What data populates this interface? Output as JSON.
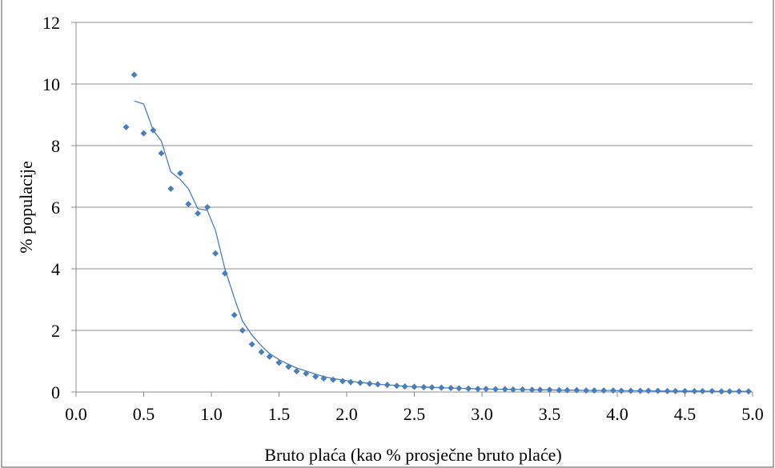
{
  "chart_data": {
    "type": "scatter",
    "title": "",
    "xlabel": "Bruto plaća (kao % prosječne bruto plaće)",
    "ylabel": "% populacije",
    "xlim": [
      0.0,
      5.0
    ],
    "ylim": [
      0,
      12
    ],
    "x_ticks": [
      "0.0",
      "0.5",
      "1.0",
      "1.5",
      "2.0",
      "2.5",
      "3.0",
      "3.5",
      "4.0",
      "4.5",
      "5.0"
    ],
    "y_ticks": [
      "0",
      "2",
      "4",
      "6",
      "8",
      "10",
      "12"
    ],
    "grid": true,
    "legend": "none",
    "colors": {
      "series": "#4a7ebb",
      "grid": "#8c8c8c"
    },
    "series": [
      {
        "style": "markers",
        "marker": "diamond",
        "x": [
          0.37,
          0.43,
          0.5,
          0.57,
          0.63,
          0.7,
          0.77,
          0.83,
          0.9,
          0.97,
          1.03,
          1.1,
          1.17,
          1.23,
          1.3,
          1.37,
          1.43,
          1.5,
          1.57,
          1.63,
          1.7,
          1.77,
          1.83,
          1.9,
          1.97,
          2.03,
          2.1,
          2.17,
          2.23,
          2.3,
          2.37,
          2.43,
          2.5,
          2.57,
          2.63,
          2.7,
          2.77,
          2.83,
          2.9,
          2.97,
          3.03,
          3.1,
          3.17,
          3.23,
          3.3,
          3.37,
          3.43,
          3.5,
          3.57,
          3.63,
          3.7,
          3.77,
          3.83,
          3.9,
          3.97,
          4.03,
          4.1,
          4.17,
          4.23,
          4.3,
          4.37,
          4.43,
          4.5,
          4.57,
          4.63,
          4.7,
          4.77,
          4.83,
          4.9,
          4.97
        ],
        "y": [
          8.6,
          10.3,
          8.4,
          8.5,
          7.75,
          6.6,
          7.1,
          6.1,
          5.8,
          6.0,
          4.5,
          3.85,
          2.5,
          2.0,
          1.55,
          1.3,
          1.15,
          0.95,
          0.82,
          0.68,
          0.6,
          0.5,
          0.44,
          0.4,
          0.35,
          0.32,
          0.3,
          0.27,
          0.25,
          0.23,
          0.2,
          0.18,
          0.17,
          0.16,
          0.15,
          0.14,
          0.13,
          0.12,
          0.11,
          0.1,
          0.1,
          0.09,
          0.09,
          0.08,
          0.08,
          0.07,
          0.07,
          0.07,
          0.06,
          0.06,
          0.06,
          0.05,
          0.05,
          0.05,
          0.05,
          0.04,
          0.04,
          0.04,
          0.04,
          0.04,
          0.03,
          0.03,
          0.03,
          0.03,
          0.03,
          0.03,
          0.02,
          0.02,
          0.02,
          0.02
        ]
      },
      {
        "style": "line",
        "x": [
          0.43,
          0.5,
          0.57,
          0.63,
          0.7,
          0.77,
          0.83,
          0.9,
          0.97,
          1.03,
          1.1,
          1.17,
          1.23,
          1.3,
          1.37,
          1.43,
          1.5,
          1.57,
          1.63,
          1.7,
          1.77,
          1.83,
          1.9,
          1.97,
          2.03,
          2.1,
          2.17,
          2.23,
          2.3,
          2.37,
          2.43,
          2.5,
          2.57,
          2.63,
          2.7,
          2.77,
          2.83,
          2.9,
          2.97,
          3.03,
          3.1,
          3.17,
          3.23,
          3.3,
          3.37,
          3.43,
          3.5,
          3.57,
          3.63,
          3.7,
          3.77,
          3.83,
          3.9,
          3.97,
          4.03,
          4.1,
          4.17,
          4.23,
          4.3,
          4.37,
          4.43,
          4.5,
          4.57,
          4.63,
          4.7,
          4.77,
          4.83,
          4.9,
          4.97
        ],
        "y": [
          9.45,
          9.35,
          8.5,
          8.15,
          7.15,
          6.9,
          6.6,
          5.95,
          5.9,
          5.25,
          4.0,
          3.05,
          2.3,
          1.85,
          1.5,
          1.25,
          1.05,
          0.9,
          0.78,
          0.68,
          0.58,
          0.5,
          0.44,
          0.39,
          0.35,
          0.31,
          0.28,
          0.25,
          0.23,
          0.21,
          0.19,
          0.17,
          0.16,
          0.15,
          0.14,
          0.13,
          0.12,
          0.11,
          0.1,
          0.1,
          0.09,
          0.09,
          0.08,
          0.08,
          0.07,
          0.07,
          0.07,
          0.06,
          0.06,
          0.06,
          0.05,
          0.05,
          0.05,
          0.05,
          0.04,
          0.04,
          0.04,
          0.04,
          0.03,
          0.03,
          0.03,
          0.03,
          0.03,
          0.03,
          0.02,
          0.02,
          0.02,
          0.02,
          0.02
        ]
      }
    ]
  }
}
